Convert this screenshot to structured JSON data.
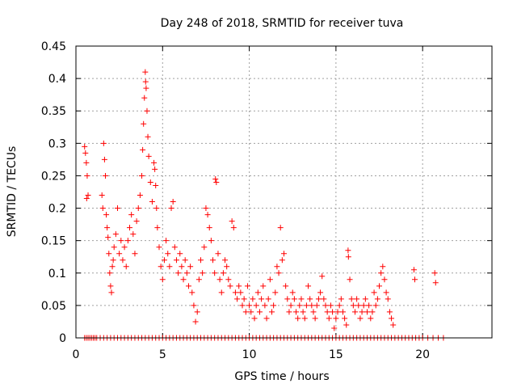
{
  "chart_data": {
    "type": "scatter",
    "title": "Day 248 of 2018, SRMTID for receiver tuva",
    "xlabel": "GPS time / hours",
    "ylabel": "SRMTID / TECUs",
    "xlim": [
      0,
      24
    ],
    "ylim": [
      0,
      0.45
    ],
    "x_ticks": [
      0,
      5,
      10,
      15,
      20
    ],
    "y_ticks": [
      0,
      0.05,
      0.1,
      0.15,
      0.2,
      0.25,
      0.3,
      0.35,
      0.4,
      0.45
    ],
    "x_tick_labels": [
      "0",
      "5",
      "10",
      "15",
      "20"
    ],
    "y_tick_labels": [
      "0",
      "0.05",
      "0.1",
      "0.15",
      "0.2",
      "0.25",
      "0.3",
      "0.35",
      "0.4",
      "0.45"
    ],
    "grid": true,
    "marker": "+",
    "series": [
      {
        "name": "SRMTID",
        "color": "#ff0000",
        "points": [
          [
            0.5,
            0.295
          ],
          [
            0.55,
            0.285
          ],
          [
            0.6,
            0.27
          ],
          [
            0.65,
            0.25
          ],
          [
            0.7,
            0.22
          ],
          [
            0.62,
            0.215
          ],
          [
            1.5,
            0.22
          ],
          [
            1.55,
            0.2
          ],
          [
            1.6,
            0.3
          ],
          [
            1.65,
            0.275
          ],
          [
            1.7,
            0.25
          ],
          [
            1.75,
            0.19
          ],
          [
            1.8,
            0.17
          ],
          [
            1.85,
            0.155
          ],
          [
            1.9,
            0.13
          ],
          [
            1.95,
            0.1
          ],
          [
            2.0,
            0.08
          ],
          [
            2.05,
            0.07
          ],
          [
            2.1,
            0.11
          ],
          [
            2.15,
            0.12
          ],
          [
            2.2,
            0.14
          ],
          [
            2.3,
            0.16
          ],
          [
            2.4,
            0.2
          ],
          [
            2.5,
            0.13
          ],
          [
            2.6,
            0.15
          ],
          [
            2.7,
            0.12
          ],
          [
            2.8,
            0.14
          ],
          [
            2.9,
            0.11
          ],
          [
            3.0,
            0.15
          ],
          [
            3.1,
            0.17
          ],
          [
            3.2,
            0.19
          ],
          [
            3.3,
            0.16
          ],
          [
            3.4,
            0.13
          ],
          [
            3.5,
            0.18
          ],
          [
            3.6,
            0.2
          ],
          [
            3.7,
            0.22
          ],
          [
            3.8,
            0.25
          ],
          [
            3.85,
            0.29
          ],
          [
            3.9,
            0.33
          ],
          [
            3.95,
            0.37
          ],
          [
            4.0,
            0.41
          ],
          [
            4.02,
            0.395
          ],
          [
            4.05,
            0.385
          ],
          [
            4.1,
            0.35
          ],
          [
            4.15,
            0.31
          ],
          [
            4.2,
            0.28
          ],
          [
            4.3,
            0.24
          ],
          [
            4.4,
            0.21
          ],
          [
            4.5,
            0.27
          ],
          [
            4.55,
            0.26
          ],
          [
            4.6,
            0.235
          ],
          [
            4.65,
            0.2
          ],
          [
            4.7,
            0.17
          ],
          [
            4.8,
            0.14
          ],
          [
            4.9,
            0.11
          ],
          [
            5.0,
            0.09
          ],
          [
            5.1,
            0.12
          ],
          [
            5.2,
            0.15
          ],
          [
            5.3,
            0.13
          ],
          [
            5.4,
            0.11
          ],
          [
            5.5,
            0.2
          ],
          [
            5.6,
            0.21
          ],
          [
            5.7,
            0.14
          ],
          [
            5.8,
            0.12
          ],
          [
            5.9,
            0.1
          ],
          [
            6.0,
            0.13
          ],
          [
            6.1,
            0.11
          ],
          [
            6.2,
            0.09
          ],
          [
            6.3,
            0.12
          ],
          [
            6.4,
            0.1
          ],
          [
            6.5,
            0.08
          ],
          [
            6.6,
            0.11
          ],
          [
            6.7,
            0.07
          ],
          [
            6.8,
            0.05
          ],
          [
            6.9,
            0.025
          ],
          [
            7.0,
            0.04
          ],
          [
            7.1,
            0.09
          ],
          [
            7.2,
            0.12
          ],
          [
            7.3,
            0.1
          ],
          [
            7.4,
            0.14
          ],
          [
            7.5,
            0.2
          ],
          [
            7.6,
            0.19
          ],
          [
            7.7,
            0.17
          ],
          [
            7.8,
            0.15
          ],
          [
            7.9,
            0.12
          ],
          [
            8.0,
            0.1
          ],
          [
            8.05,
            0.245
          ],
          [
            8.1,
            0.24
          ],
          [
            8.2,
            0.13
          ],
          [
            8.3,
            0.09
          ],
          [
            8.4,
            0.07
          ],
          [
            8.5,
            0.1
          ],
          [
            8.6,
            0.12
          ],
          [
            8.7,
            0.11
          ],
          [
            8.8,
            0.09
          ],
          [
            8.9,
            0.08
          ],
          [
            9.0,
            0.18
          ],
          [
            9.1,
            0.17
          ],
          [
            9.2,
            0.07
          ],
          [
            9.3,
            0.06
          ],
          [
            9.4,
            0.08
          ],
          [
            9.5,
            0.07
          ],
          [
            9.6,
            0.05
          ],
          [
            9.7,
            0.06
          ],
          [
            9.8,
            0.04
          ],
          [
            9.9,
            0.08
          ],
          [
            10.0,
            0.05
          ],
          [
            10.1,
            0.04
          ],
          [
            10.2,
            0.06
          ],
          [
            10.3,
            0.03
          ],
          [
            10.4,
            0.05
          ],
          [
            10.5,
            0.07
          ],
          [
            10.6,
            0.04
          ],
          [
            10.7,
            0.06
          ],
          [
            10.8,
            0.08
          ],
          [
            10.9,
            0.05
          ],
          [
            11.0,
            0.03
          ],
          [
            11.1,
            0.06
          ],
          [
            11.2,
            0.09
          ],
          [
            11.3,
            0.04
          ],
          [
            11.4,
            0.05
          ],
          [
            11.5,
            0.07
          ],
          [
            11.6,
            0.11
          ],
          [
            11.7,
            0.1
          ],
          [
            11.8,
            0.17
          ],
          [
            11.9,
            0.12
          ],
          [
            12.0,
            0.13
          ],
          [
            12.1,
            0.08
          ],
          [
            12.2,
            0.06
          ],
          [
            12.3,
            0.04
          ],
          [
            12.4,
            0.05
          ],
          [
            12.5,
            0.07
          ],
          [
            12.6,
            0.06
          ],
          [
            12.7,
            0.04
          ],
          [
            12.8,
            0.03
          ],
          [
            12.9,
            0.05
          ],
          [
            13.0,
            0.06
          ],
          [
            13.1,
            0.04
          ],
          [
            13.2,
            0.03
          ],
          [
            13.3,
            0.05
          ],
          [
            13.4,
            0.08
          ],
          [
            13.5,
            0.06
          ],
          [
            13.6,
            0.05
          ],
          [
            13.7,
            0.04
          ],
          [
            13.8,
            0.03
          ],
          [
            13.9,
            0.05
          ],
          [
            14.0,
            0.06
          ],
          [
            14.1,
            0.07
          ],
          [
            14.2,
            0.095
          ],
          [
            14.3,
            0.06
          ],
          [
            14.4,
            0.05
          ],
          [
            14.5,
            0.04
          ],
          [
            14.6,
            0.03
          ],
          [
            14.7,
            0.05
          ],
          [
            14.8,
            0.04
          ],
          [
            14.9,
            0.015
          ],
          [
            15.0,
            0.03
          ],
          [
            15.1,
            0.04
          ],
          [
            15.2,
            0.05
          ],
          [
            15.3,
            0.06
          ],
          [
            15.4,
            0.04
          ],
          [
            15.5,
            0.03
          ],
          [
            15.6,
            0.02
          ],
          [
            15.7,
            0.135
          ],
          [
            15.72,
            0.125
          ],
          [
            15.8,
            0.09
          ],
          [
            15.9,
            0.06
          ],
          [
            16.0,
            0.05
          ],
          [
            16.1,
            0.04
          ],
          [
            16.2,
            0.06
          ],
          [
            16.3,
            0.05
          ],
          [
            16.4,
            0.03
          ],
          [
            16.5,
            0.04
          ],
          [
            16.6,
            0.05
          ],
          [
            16.7,
            0.06
          ],
          [
            16.8,
            0.04
          ],
          [
            16.9,
            0.05
          ],
          [
            17.0,
            0.03
          ],
          [
            17.1,
            0.04
          ],
          [
            17.2,
            0.07
          ],
          [
            17.3,
            0.05
          ],
          [
            17.4,
            0.06
          ],
          [
            17.5,
            0.08
          ],
          [
            17.6,
            0.1
          ],
          [
            17.7,
            0.11
          ],
          [
            17.8,
            0.09
          ],
          [
            17.9,
            0.07
          ],
          [
            18.0,
            0.06
          ],
          [
            18.1,
            0.04
          ],
          [
            18.2,
            0.03
          ],
          [
            18.3,
            0.02
          ],
          [
            19.5,
            0.105
          ],
          [
            19.55,
            0.09
          ],
          [
            20.7,
            0.1
          ],
          [
            20.75,
            0.085
          ],
          [
            0.5,
            0
          ],
          [
            0.6,
            0
          ],
          [
            0.7,
            0
          ],
          [
            0.8,
            0
          ],
          [
            0.9,
            0
          ],
          [
            1.0,
            0
          ],
          [
            1.1,
            0
          ],
          [
            1.2,
            0
          ],
          [
            1.4,
            0
          ],
          [
            1.6,
            0
          ],
          [
            1.8,
            0
          ],
          [
            2.0,
            0
          ],
          [
            2.2,
            0
          ],
          [
            2.4,
            0
          ],
          [
            2.6,
            0
          ],
          [
            2.8,
            0
          ],
          [
            3.0,
            0
          ],
          [
            3.2,
            0
          ],
          [
            3.4,
            0
          ],
          [
            3.6,
            0
          ],
          [
            3.8,
            0
          ],
          [
            4.0,
            0
          ],
          [
            4.2,
            0
          ],
          [
            4.4,
            0
          ],
          [
            4.6,
            0
          ],
          [
            4.8,
            0
          ],
          [
            5.0,
            0
          ],
          [
            5.2,
            0
          ],
          [
            5.4,
            0
          ],
          [
            5.6,
            0
          ],
          [
            5.8,
            0
          ],
          [
            6.0,
            0
          ],
          [
            6.2,
            0
          ],
          [
            6.4,
            0
          ],
          [
            6.6,
            0
          ],
          [
            6.8,
            0
          ],
          [
            7.0,
            0
          ],
          [
            7.2,
            0
          ],
          [
            7.4,
            0
          ],
          [
            7.6,
            0
          ],
          [
            7.8,
            0
          ],
          [
            8.0,
            0
          ],
          [
            8.2,
            0
          ],
          [
            8.4,
            0
          ],
          [
            8.6,
            0
          ],
          [
            8.8,
            0
          ],
          [
            9.0,
            0
          ],
          [
            9.2,
            0
          ],
          [
            9.4,
            0
          ],
          [
            9.6,
            0
          ],
          [
            9.8,
            0
          ],
          [
            10.0,
            0
          ],
          [
            10.2,
            0
          ],
          [
            10.4,
            0
          ],
          [
            10.6,
            0
          ],
          [
            10.8,
            0
          ],
          [
            11.0,
            0
          ],
          [
            11.2,
            0
          ],
          [
            11.4,
            0
          ],
          [
            11.6,
            0
          ],
          [
            11.8,
            0
          ],
          [
            12.0,
            0
          ],
          [
            12.2,
            0
          ],
          [
            12.4,
            0
          ],
          [
            12.6,
            0
          ],
          [
            12.8,
            0
          ],
          [
            13.0,
            0
          ],
          [
            13.2,
            0
          ],
          [
            13.4,
            0
          ],
          [
            13.6,
            0
          ],
          [
            13.8,
            0
          ],
          [
            14.0,
            0
          ],
          [
            14.2,
            0
          ],
          [
            14.4,
            0
          ],
          [
            14.6,
            0
          ],
          [
            14.8,
            0
          ],
          [
            15.0,
            0
          ],
          [
            15.2,
            0
          ],
          [
            15.4,
            0
          ],
          [
            15.6,
            0
          ],
          [
            15.8,
            0
          ],
          [
            16.0,
            0
          ],
          [
            16.2,
            0
          ],
          [
            16.4,
            0
          ],
          [
            16.6,
            0
          ],
          [
            16.8,
            0
          ],
          [
            17.0,
            0
          ],
          [
            17.2,
            0
          ],
          [
            17.4,
            0
          ],
          [
            17.6,
            0
          ],
          [
            17.8,
            0
          ],
          [
            18.0,
            0
          ],
          [
            18.2,
            0
          ],
          [
            18.4,
            0
          ],
          [
            18.6,
            0
          ],
          [
            18.8,
            0
          ],
          [
            19.0,
            0
          ],
          [
            19.2,
            0
          ],
          [
            19.4,
            0
          ],
          [
            19.6,
            0
          ],
          [
            19.8,
            0
          ],
          [
            20.0,
            0
          ],
          [
            20.3,
            0
          ],
          [
            20.6,
            0
          ],
          [
            20.9,
            0
          ],
          [
            21.2,
            0
          ]
        ]
      }
    ]
  }
}
